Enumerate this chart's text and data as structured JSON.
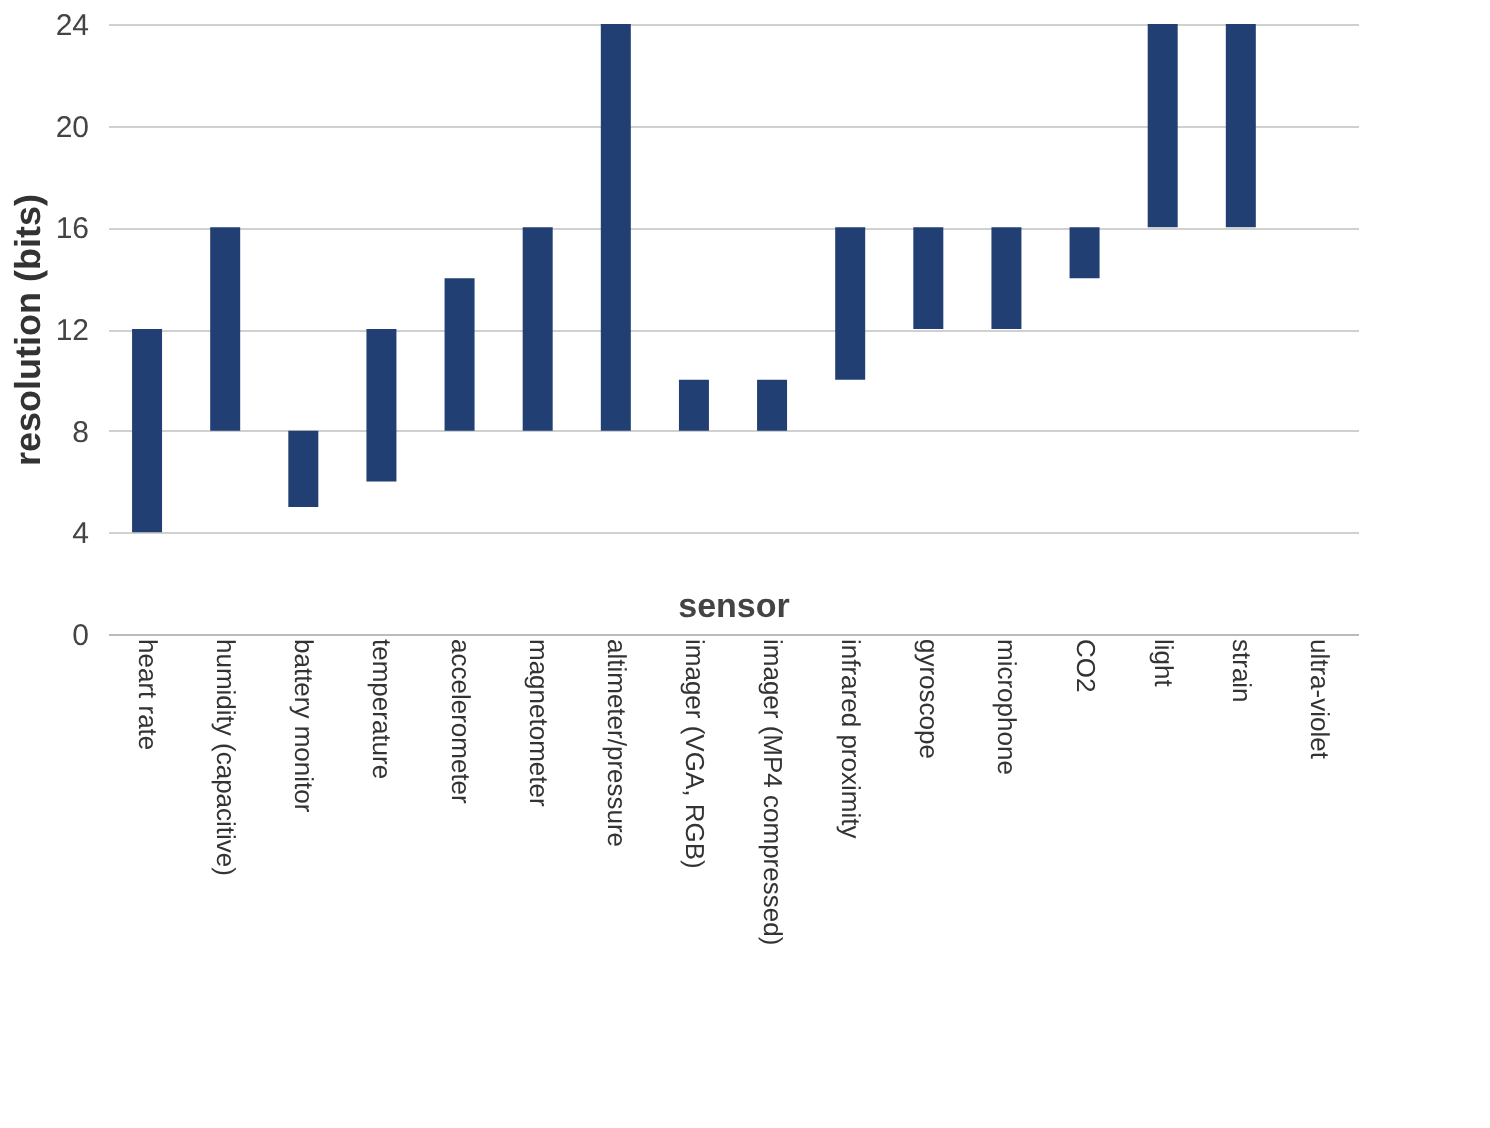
{
  "chart_data": {
    "type": "bar",
    "categories": [
      "heart rate",
      "humidity (capacitive)",
      "battery monitor",
      "temperature",
      "accelerometer",
      "magnetometer",
      "altimeter/pressure",
      "imager (VGA, RGB)",
      "imager (MP4 compressed)",
      "infrared proximity",
      "gyroscope",
      "microphone",
      "CO2",
      "light",
      "strain",
      "ultra-violet"
    ],
    "base": [
      4,
      8,
      5,
      6,
      8,
      8,
      8,
      8,
      8,
      10,
      12,
      12,
      14,
      16,
      16,
      null
    ],
    "values": [
      8,
      8,
      3,
      6,
      6,
      8,
      16,
      2,
      2,
      6,
      4,
      4,
      2,
      8,
      8,
      null
    ],
    "color": "#213f73",
    "xlabel": "sensor",
    "ylabel": "resolution (bits)",
    "ylim": [
      0,
      24
    ],
    "yticks": [
      0,
      4,
      8,
      12,
      16,
      20,
      24
    ],
    "grid": "y"
  }
}
